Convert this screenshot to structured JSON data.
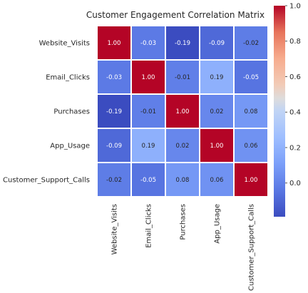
{
  "chart_data": {
    "type": "heatmap",
    "title": "Customer Engagement Correlation Matrix",
    "row_labels": [
      "Website_Visits",
      "Email_Clicks",
      "Purchases",
      "App_Usage",
      "Customer_Support_Calls"
    ],
    "col_labels": [
      "Website_Visits",
      "Email_Clicks",
      "Purchases",
      "App_Usage",
      "Customer_Support_Calls"
    ],
    "values": [
      [
        1.0,
        -0.03,
        -0.19,
        -0.09,
        -0.02
      ],
      [
        -0.03,
        1.0,
        -0.01,
        0.19,
        -0.05
      ],
      [
        -0.19,
        -0.01,
        1.0,
        0.02,
        0.08
      ],
      [
        -0.09,
        0.19,
        0.02,
        1.0,
        0.06
      ],
      [
        -0.02,
        -0.05,
        0.08,
        0.06,
        1.0
      ]
    ],
    "value_format": "0.00",
    "colormap": "coolwarm",
    "colorbar": {
      "vmin": -0.19,
      "vmax": 1.0,
      "ticks": [
        0.0,
        0.2,
        0.4,
        0.6,
        0.8,
        1.0
      ],
      "tick_labels": [
        "0.0",
        "0.2",
        "0.4",
        "0.6",
        "0.8",
        "1.0"
      ]
    },
    "grid": false
  }
}
